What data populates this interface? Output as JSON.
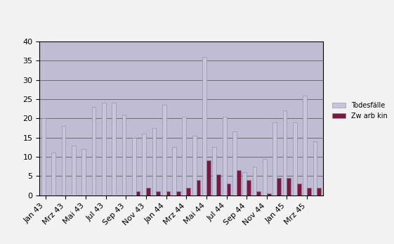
{
  "chart_data": {
    "type": "bar",
    "categories": [
      "Jan 43",
      null,
      "Mrz 43",
      null,
      "Mai 43",
      null,
      "Jul 43",
      null,
      "Sep 43",
      null,
      "Nov 43",
      null,
      "Jan 44",
      null,
      "Mrz 44",
      null,
      "Mai 44",
      null,
      "Jul 44",
      null,
      "Sep 44",
      null,
      "Nov 44",
      null,
      "Jan 45",
      null,
      "Mrz 45",
      null
    ],
    "series": [
      {
        "name": "Todesfälle",
        "color": "#c8c4dc",
        "values": [
          20,
          11,
          18,
          13,
          12,
          23,
          24,
          24,
          21,
          15,
          16,
          17.5,
          23.5,
          12.5,
          20.5,
          15.5,
          36,
          12.5,
          20.5,
          16.5,
          6,
          7.5,
          9.5,
          19,
          22,
          19,
          26,
          14
        ]
      },
      {
        "name": "Zw arb kin",
        "color": "#7a1840",
        "values": [
          0,
          0,
          0,
          0,
          0,
          0,
          0,
          0,
          0,
          1,
          2,
          1,
          1,
          1,
          2,
          4,
          9,
          5.5,
          3,
          6.5,
          4,
          1,
          0.5,
          4.5,
          4.5,
          3,
          2,
          2
        ]
      }
    ],
    "ylim": [
      0,
      40
    ],
    "yticks": [
      0,
      5,
      10,
      15,
      20,
      25,
      30,
      35,
      40
    ],
    "grid": true,
    "legend": "right"
  }
}
